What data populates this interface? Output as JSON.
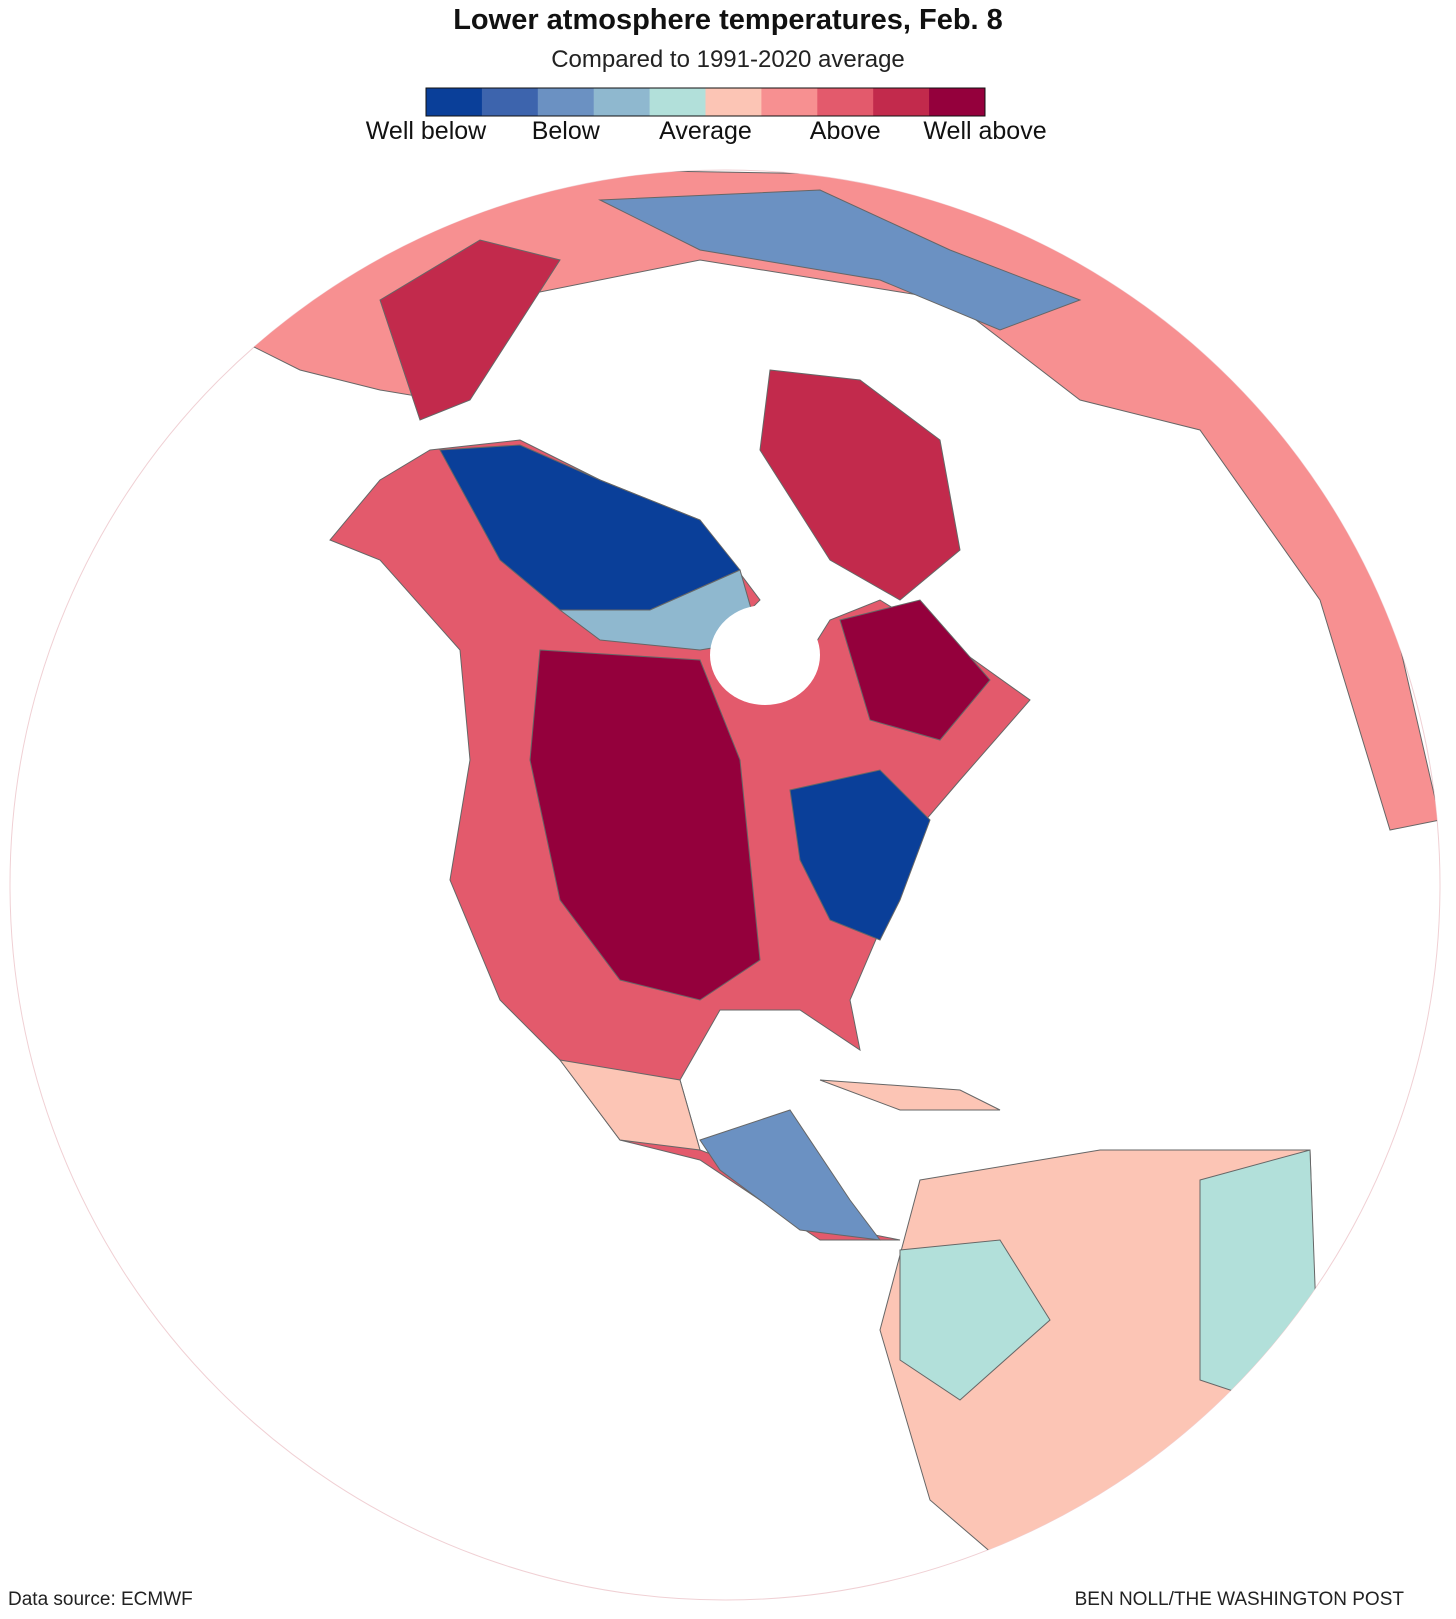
{
  "header": {
    "title": "Lower atmosphere temperatures, Feb. 8",
    "subtitle": "Compared to 1991-2020 average"
  },
  "legend": {
    "colors": [
      "#0a3f99",
      "#3d64ad",
      "#6b91c2",
      "#8fb8cf",
      "#b2e0da",
      "#fcc5b5",
      "#f79091",
      "#e35a6c",
      "#c22a4c",
      "#94003c"
    ],
    "labels": [
      "Well below",
      "Below",
      "Average",
      "Above",
      "Well above"
    ]
  },
  "footer": {
    "source": "Data source: ECMWF",
    "credit": "BEN NOLL/THE WASHINGTON POST"
  }
}
